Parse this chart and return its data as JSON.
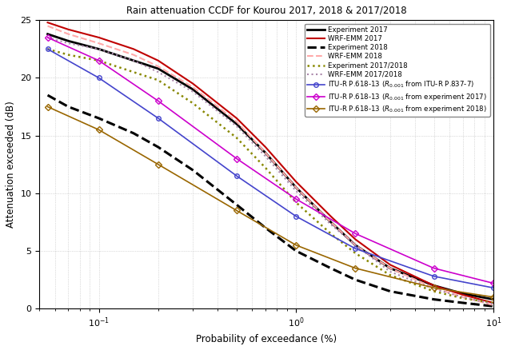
{
  "title": "Rain attenuation CCDF for Kourou 2017, 2018 & 2017/2018",
  "xlabel": "Probability of exceedance (%)",
  "ylabel": "Attenuation exceeded (dB)",
  "xlim": [
    0.05,
    10
  ],
  "ylim": [
    0,
    25
  ],
  "yticks": [
    0,
    5,
    10,
    15,
    20,
    25
  ],
  "series": [
    {
      "label": "Experiment 2017",
      "color": "#000000",
      "linestyle": "-",
      "linewidth": 2.0,
      "marker": null,
      "x": [
        0.055,
        0.07,
        0.1,
        0.15,
        0.2,
        0.3,
        0.5,
        0.7,
        1.0,
        1.5,
        2.0,
        3.0,
        5.0,
        7.0,
        10.0
      ],
      "y": [
        23.8,
        23.2,
        22.5,
        21.5,
        20.8,
        19.0,
        16.0,
        13.5,
        10.5,
        7.5,
        5.5,
        3.5,
        2.0,
        1.3,
        0.8
      ]
    },
    {
      "label": "WRF-EMM 2017",
      "color": "#c00000",
      "linestyle": "-",
      "linewidth": 1.5,
      "marker": null,
      "x": [
        0.055,
        0.07,
        0.1,
        0.15,
        0.2,
        0.3,
        0.5,
        0.7,
        1.0,
        1.5,
        2.0,
        3.0,
        5.0,
        7.0,
        10.0
      ],
      "y": [
        24.8,
        24.2,
        23.5,
        22.5,
        21.5,
        19.5,
        16.5,
        14.0,
        11.0,
        8.0,
        6.0,
        3.8,
        2.0,
        1.2,
        0.5
      ]
    },
    {
      "label": "Experiment 2018",
      "color": "#000000",
      "linestyle": "--",
      "linewidth": 2.2,
      "marker": null,
      "x": [
        0.055,
        0.07,
        0.1,
        0.15,
        0.2,
        0.3,
        0.5,
        0.7,
        1.0,
        1.5,
        2.0,
        3.0,
        5.0,
        7.0,
        10.0
      ],
      "y": [
        18.5,
        17.5,
        16.5,
        15.2,
        14.0,
        12.0,
        9.0,
        7.0,
        5.0,
        3.5,
        2.5,
        1.5,
        0.8,
        0.5,
        0.2
      ]
    },
    {
      "label": "WRF-EMM 2018",
      "color": "#ffaaaa",
      "linestyle": "--",
      "linewidth": 1.5,
      "marker": null,
      "x": [
        0.055,
        0.07,
        0.1,
        0.15,
        0.2,
        0.3,
        0.5,
        0.7,
        1.0,
        1.5,
        2.0,
        3.0,
        5.0,
        7.0,
        10.0
      ],
      "y": [
        24.5,
        23.8,
        23.0,
        22.0,
        21.0,
        19.2,
        16.2,
        13.5,
        10.5,
        7.5,
        5.5,
        3.5,
        1.8,
        1.0,
        0.3
      ]
    },
    {
      "label": "Experiment 2017/2018",
      "color": "#888800",
      "linestyle": "dotted",
      "linewidth": 1.8,
      "marker": null,
      "x": [
        0.055,
        0.07,
        0.1,
        0.15,
        0.2,
        0.3,
        0.5,
        0.7,
        1.0,
        1.5,
        2.0,
        3.0,
        5.0,
        7.0,
        10.0
      ],
      "y": [
        22.5,
        22.0,
        21.5,
        20.5,
        19.8,
        17.8,
        14.8,
        12.2,
        9.2,
        6.5,
        4.8,
        2.9,
        1.5,
        0.9,
        0.5
      ]
    },
    {
      "label": "WRF-EMM 2017/2018",
      "color": "#aa88aa",
      "linestyle": "dotted",
      "linewidth": 1.5,
      "marker": null,
      "x": [
        0.055,
        0.07,
        0.1,
        0.15,
        0.2,
        0.3,
        0.5,
        0.7,
        1.0,
        1.5,
        2.0,
        3.0,
        5.0,
        7.0,
        10.0
      ],
      "y": [
        23.5,
        23.0,
        22.5,
        21.5,
        20.5,
        18.8,
        15.8,
        13.2,
        10.2,
        7.3,
        5.5,
        3.2,
        1.7,
        1.0,
        0.4
      ]
    },
    {
      "label": "ITU-R P.618-13 ($R_{0.001}$ from ITU-R P.837-7)",
      "color": "#4444cc",
      "linestyle": "-",
      "linewidth": 1.2,
      "marker": "o",
      "markersize": 4,
      "x": [
        0.055,
        0.1,
        0.2,
        0.5,
        1.0,
        2.0,
        5.0,
        10.0
      ],
      "y": [
        22.5,
        20.0,
        16.5,
        11.5,
        8.0,
        5.2,
        2.8,
        1.8
      ]
    },
    {
      "label": "ITU-R P.618-13 ($R_{0.001}$ from experiment 2017)",
      "color": "#cc00cc",
      "linestyle": "-",
      "linewidth": 1.2,
      "marker": "D",
      "markersize": 4,
      "x": [
        0.055,
        0.1,
        0.2,
        0.5,
        1.0,
        2.0,
        5.0,
        10.0
      ],
      "y": [
        23.5,
        21.5,
        18.0,
        13.0,
        9.5,
        6.5,
        3.5,
        2.2
      ]
    },
    {
      "label": "ITU-R P.618-13 ($R_{0.001}$ from experiment 2018)",
      "color": "#996600",
      "linestyle": "-",
      "linewidth": 1.2,
      "marker": "D",
      "markersize": 4,
      "x": [
        0.055,
        0.1,
        0.2,
        0.5,
        1.0,
        2.0,
        5.0,
        10.0
      ],
      "y": [
        17.5,
        15.5,
        12.5,
        8.5,
        5.5,
        3.5,
        1.8,
        1.0
      ]
    }
  ]
}
